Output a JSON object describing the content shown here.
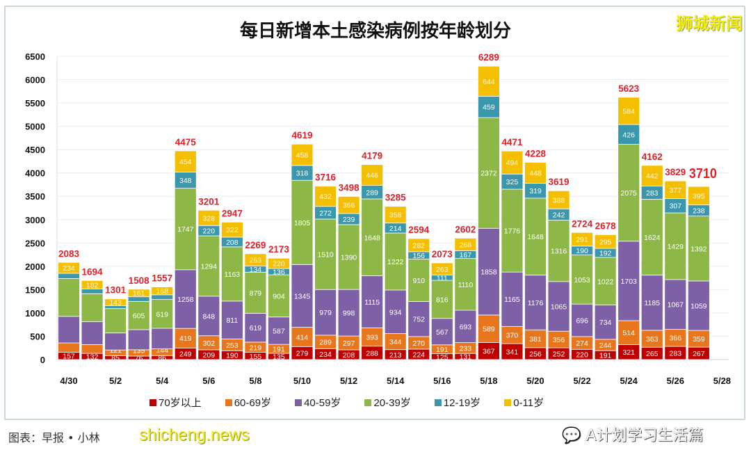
{
  "watermarks": {
    "top_right": "狮城新闻",
    "bottom_left": "shicheng.news",
    "bottom_right": "A计划学习生活篇",
    "source": "图表：早报 • 小林"
  },
  "chart_data": {
    "type": "bar",
    "stacked": true,
    "title": "每日新增本土感染病例按年龄划分",
    "xlabel": "",
    "ylabel": "",
    "ylim": [
      0,
      6500
    ],
    "yticks": [
      0,
      500,
      1000,
      1500,
      2000,
      2500,
      3000,
      3500,
      4000,
      4500,
      5000,
      5500,
      6000,
      6500
    ],
    "xtick_labels": [
      "4/30",
      "5/2",
      "5/4",
      "5/6",
      "5/8",
      "5/10",
      "5/12",
      "5/14",
      "5/16",
      "5/18",
      "5/20",
      "5/22",
      "5/24",
      "5/26",
      "5/28"
    ],
    "grid": true,
    "legend_position": "bottom",
    "categories": [
      "4/30",
      "5/1",
      "5/2",
      "5/3",
      "5/4",
      "5/5",
      "5/6",
      "5/7",
      "5/8",
      "5/9",
      "5/10",
      "5/11",
      "5/12",
      "5/13",
      "5/14",
      "5/15",
      "5/16",
      "5/17",
      "5/18",
      "5/19",
      "5/20",
      "5/21",
      "5/22",
      "5/23",
      "5/24",
      "5/25",
      "5/26",
      "5/27"
    ],
    "series": [
      {
        "name": "70岁以上",
        "color": "#c00000",
        "values": [
          157,
          132,
          85,
          76,
          86,
          249,
          209,
          190,
          155,
          135,
          279,
          234,
          208,
          288,
          213,
          224,
          125,
          131,
          367,
          341,
          256,
          252,
          220,
          191,
          321,
          265,
          283,
          267
        ]
      },
      {
        "name": "60-69岁",
        "color": "#e8761c",
        "values": [
          200,
          190,
          121,
          135,
          144,
          419,
          302,
          253,
          219,
          191,
          414,
          289,
          297,
          393,
          344,
          270,
          191,
          233,
          589,
          370,
          381,
          356,
          274,
          244,
          514,
          363,
          366,
          359
        ]
      },
      {
        "name": "40-59岁",
        "color": "#7d60a6",
        "values": [
          570,
          490,
          365,
          431,
          440,
          1258,
          848,
          811,
          619,
          587,
          1345,
          979,
          998,
          1115,
          934,
          752,
          567,
          693,
          1858,
          1165,
          1176,
          1065,
          696,
          734,
          1703,
          1185,
          1067,
          1059
        ]
      },
      {
        "name": "20-39岁",
        "color": "#8db747",
        "values": [
          810,
          600,
          522,
          605,
          619,
          1747,
          1294,
          1163,
          879,
          904,
          1805,
          1510,
          1390,
          1648,
          1222,
          910,
          816,
          1110,
          2372,
          1776,
          1648,
          1316,
          1053,
          1022,
          2075,
          1624,
          1429,
          1392
        ]
      },
      {
        "name": "12-19岁",
        "color": "#3b97ab",
        "values": [
          112,
          100,
          65,
          100,
          100,
          348,
          220,
          208,
          134,
          136,
          318,
          272,
          239,
          289,
          214,
          156,
          111,
          167,
          459,
          325,
          319,
          242,
          190,
          192,
          426,
          283,
          307,
          238
        ]
      },
      {
        "name": "0-11岁",
        "color": "#f4bf00",
        "values": [
          234,
          182,
          143,
          161,
          168,
          454,
          328,
          322,
          263,
          220,
          458,
          432,
          366,
          446,
          358,
          282,
          263,
          268,
          644,
          494,
          448,
          388,
          291,
          295,
          584,
          442,
          377,
          395
        ]
      }
    ],
    "totals": [
      2083,
      1694,
      1301,
      1508,
      1557,
      4475,
      3201,
      2947,
      2269,
      2173,
      4619,
      3716,
      3498,
      4179,
      3285,
      2594,
      2073,
      2602,
      6289,
      4471,
      4228,
      3619,
      2724,
      2678,
      5623,
      4162,
      3829,
      3710
    ],
    "unlabeled_segments": [
      [
        0,
        1
      ],
      [
        0,
        2
      ],
      [
        0,
        3
      ],
      [
        0,
        4
      ],
      [
        1,
        1
      ],
      [
        1,
        2
      ],
      [
        1,
        3
      ],
      [
        1,
        4
      ],
      [
        2,
        2
      ],
      [
        2,
        3
      ],
      [
        2,
        4
      ],
      [
        3,
        2
      ],
      [
        3,
        4
      ],
      [
        4,
        2
      ],
      [
        4,
        4
      ]
    ],
    "total_label_color": "#e0202a"
  }
}
